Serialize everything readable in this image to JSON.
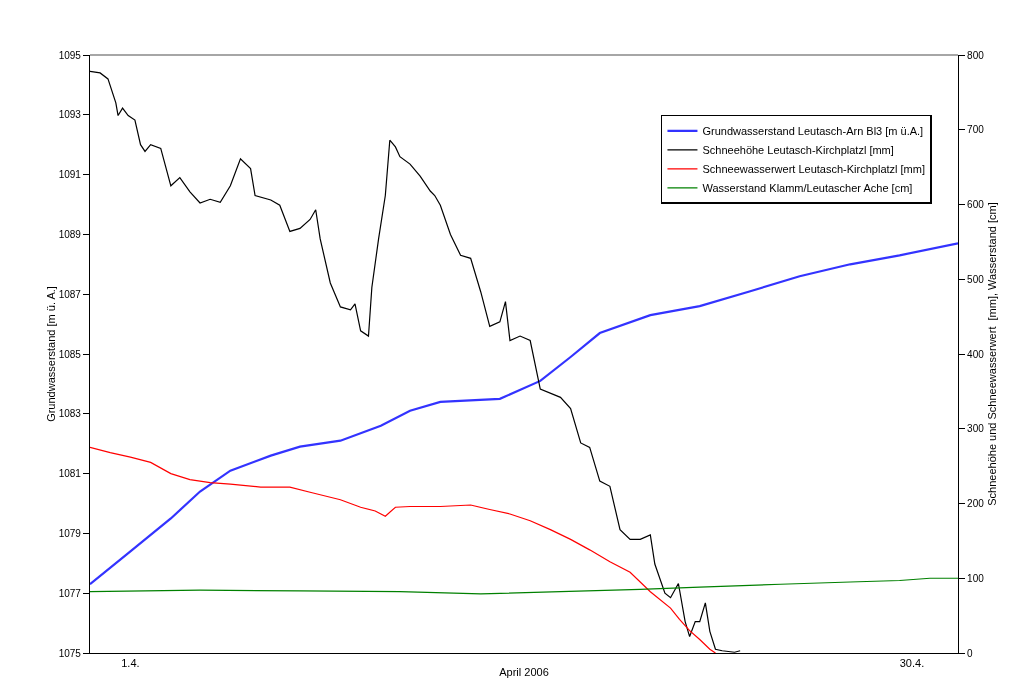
{
  "chart_data": {
    "type": "line",
    "xlabel": "April 2006",
    "ylabel": "Grundwasserstand [m ü. A.]",
    "y2label": "Schneehöhe und Schneewasserwert  [mm], Wasserstand [cm]",
    "legend": "top right",
    "grid": false,
    "marker": "none",
    "line_style": "solid",
    "xlim": [
      "2006-03-30T12:00",
      "2006-05-01T17:00"
    ],
    "xticks": [
      {
        "value": "2006-04-01",
        "label": "1.4."
      },
      {
        "value": "2006-04-30",
        "label": "30.4."
      }
    ],
    "ylim": [
      1075,
      1095
    ],
    "yticks": [
      1075,
      1077,
      1079,
      1081,
      1083,
      1085,
      1087,
      1089,
      1091,
      1093,
      1095
    ],
    "y2lim": [
      0,
      800
    ],
    "y2ticks": [
      0,
      100,
      200,
      300,
      400,
      500,
      600,
      700,
      800
    ],
    "series": [
      {
        "name": "Grundwasserstand Leutasch-Arn Bl3 [m ü.A.]",
        "color": "#3333ff",
        "x": [
          "2006-03-30T12:00",
          "2006-04-01T00:00",
          "2006-04-02T12:00",
          "2006-04-03T14:00",
          "2006-04-04T17:00",
          "2006-04-06T05:00",
          "2006-04-07T07:00",
          "2006-04-08T19:00",
          "2006-04-10T07:00",
          "2006-04-11T09:00",
          "2006-04-12T12:00",
          "2006-04-14T17:00",
          "2006-04-16T05:00",
          "2006-04-17T08:00",
          "2006-04-18T10:00",
          "2006-04-20T07:00",
          "2006-04-22T03:00",
          "2006-04-24T00:00",
          "2006-04-25T20:00",
          "2006-04-27T17:00",
          "2006-04-29T13:00",
          "2006-05-01T17:00"
        ],
        "values": [
          1077.3,
          1078.4,
          1079.5,
          1080.4,
          1081.1,
          1081.6,
          1081.9,
          1082.1,
          1082.6,
          1083.1,
          1083.4,
          1083.5,
          1084.1,
          1084.9,
          1085.7,
          1086.3,
          1086.6,
          1087.1,
          1087.6,
          1088.0,
          1088.3,
          1088.7
        ]
      },
      {
        "name": "Schneehöhe Leutasch-Kirchplatzl [mm]",
        "color": "#000000",
        "axis": "y2",
        "x": [
          "2006-03-30T12:00",
          "2006-03-30T21:00",
          "2006-03-31T04:00",
          "2006-03-31T11:00",
          "2006-03-31T13:00",
          "2006-03-31T17:00",
          "2006-03-31T22:00",
          "2006-04-01T04:00",
          "2006-04-01T09:00",
          "2006-04-01T13:00",
          "2006-04-01T18:00",
          "2006-04-02T03:00",
          "2006-04-02T12:00",
          "2006-04-02T20:00",
          "2006-04-03T05:00",
          "2006-04-03T14:00",
          "2006-04-03T23:00",
          "2006-04-04T08:00",
          "2006-04-04T17:00",
          "2006-04-05T02:00",
          "2006-04-05T11:00",
          "2006-04-05T15:00",
          "2006-04-06T05:00",
          "2006-04-06T13:00",
          "2006-04-06T22:00",
          "2006-04-07T07:00",
          "2006-04-07T16:00",
          "2006-04-07T21:00",
          "2006-04-08T01:00",
          "2006-04-08T10:00",
          "2006-04-08T19:00",
          "2006-04-09T04:00",
          "2006-04-09T08:00",
          "2006-04-09T13:00",
          "2006-04-09T20:00",
          "2006-04-09T23:00",
          "2006-04-10T05:00",
          "2006-04-10T11:00",
          "2006-04-10T15:00",
          "2006-04-10T20:00",
          "2006-04-11T00:00",
          "2006-04-11T09:00",
          "2006-04-11T18:00",
          "2006-04-12T03:00",
          "2006-04-12T07:00",
          "2006-04-12T12:00",
          "2006-04-12T21:00",
          "2006-04-13T06:00",
          "2006-04-13T15:00",
          "2006-04-14T00:00",
          "2006-04-14T08:00",
          "2006-04-14T17:00",
          "2006-04-14T22:00",
          "2006-04-15T02:00",
          "2006-04-15T11:00",
          "2006-04-15T20:00",
          "2006-04-16T05:00",
          "2006-04-16T23:00",
          "2006-04-17T08:00",
          "2006-04-17T17:00",
          "2006-04-18T01:00",
          "2006-04-18T10:00",
          "2006-04-18T19:00",
          "2006-04-19T04:00",
          "2006-04-19T13:00",
          "2006-04-19T22:00",
          "2006-04-20T07:00",
          "2006-04-20T11:00",
          "2006-04-20T20:00",
          "2006-04-21T01:00",
          "2006-04-21T08:00",
          "2006-04-21T14:00",
          "2006-04-21T18:00",
          "2006-04-21T23:00",
          "2006-04-22T03:00",
          "2006-04-22T08:00",
          "2006-04-22T12:00",
          "2006-04-22T17:00",
          "2006-04-22T23:00",
          "2006-04-23T10:00",
          "2006-04-23T15:00"
        ],
        "values": [
          778,
          776,
          768,
          736,
          719,
          729,
          719,
          713,
          680,
          671,
          680,
          675,
          625,
          636,
          617,
          602,
          607,
          603,
          625,
          661,
          648,
          612,
          606,
          599,
          564,
          568,
          580,
          593,
          554,
          495,
          463,
          459,
          467,
          431,
          424,
          489,
          554,
          612,
          686,
          677,
          664,
          654,
          638,
          618,
          612,
          599,
          560,
          532,
          528,
          483,
          437,
          443,
          470,
          418,
          424,
          418,
          353,
          342,
          327,
          281,
          275,
          230,
          223,
          165,
          152,
          152,
          158,
          119,
          80,
          74,
          93,
          42,
          22,
          42,
          42,
          67,
          29,
          5,
          3,
          1,
          3
        ]
      },
      {
        "name": "Schneewasserwert Leutasch-Kirchplatzl [mm]",
        "color": "#ff0000",
        "axis": "y2",
        "x": [
          "2006-03-30T12:00",
          "2006-03-31T06:00",
          "2006-04-01T00:00",
          "2006-04-01T18:00",
          "2006-04-02T12:00",
          "2006-04-03T05:00",
          "2006-04-03T23:00",
          "2006-04-04T17:00",
          "2006-04-05T20:00",
          "2006-04-06T22:00",
          "2006-04-07T16:00",
          "2006-04-08T19:00",
          "2006-04-09T13:00",
          "2006-04-10T02:00",
          "2006-04-10T11:00",
          "2006-04-10T20:00",
          "2006-04-11T09:00",
          "2006-04-12T12:00",
          "2006-04-13T15:00",
          "2006-04-14T08:00",
          "2006-04-15T02:00",
          "2006-04-15T20:00",
          "2006-04-16T14:00",
          "2006-04-17T08:00",
          "2006-04-18T01:00",
          "2006-04-18T19:00",
          "2006-04-19T13:00",
          "2006-04-20T07:00",
          "2006-04-21T01:00",
          "2006-04-21T09:00",
          "2006-04-21T18:00",
          "2006-04-22T03:00",
          "2006-04-22T12:00",
          "2006-04-22T17:00"
        ],
        "values": [
          275,
          268,
          262,
          255,
          240,
          232,
          228,
          226,
          222,
          222,
          215,
          205,
          195,
          190,
          183,
          195,
          196,
          196,
          198,
          192,
          186,
          177,
          165,
          152,
          138,
          122,
          108,
          82,
          60,
          45,
          30,
          18,
          5,
          0
        ]
      },
      {
        "name": "Wasserstand Klamm/Leutascher Ache [cm]",
        "color": "#008000",
        "axis": "y2",
        "x": [
          "2006-03-30T12:00",
          "2006-04-03T14:00",
          "2006-04-07T07:00",
          "2006-04-11T00:00",
          "2006-04-14T00:00",
          "2006-04-16T23:00",
          "2006-04-19T22:00",
          "2006-04-22T03:00",
          "2006-04-25T03:00",
          "2006-04-27T17:00",
          "2006-04-29T13:00",
          "2006-04-30T16:00",
          "2006-05-01T17:00"
        ],
        "values": [
          82,
          84,
          83,
          82,
          79,
          82,
          85,
          88,
          92,
          95,
          97,
          100,
          100
        ]
      }
    ]
  }
}
